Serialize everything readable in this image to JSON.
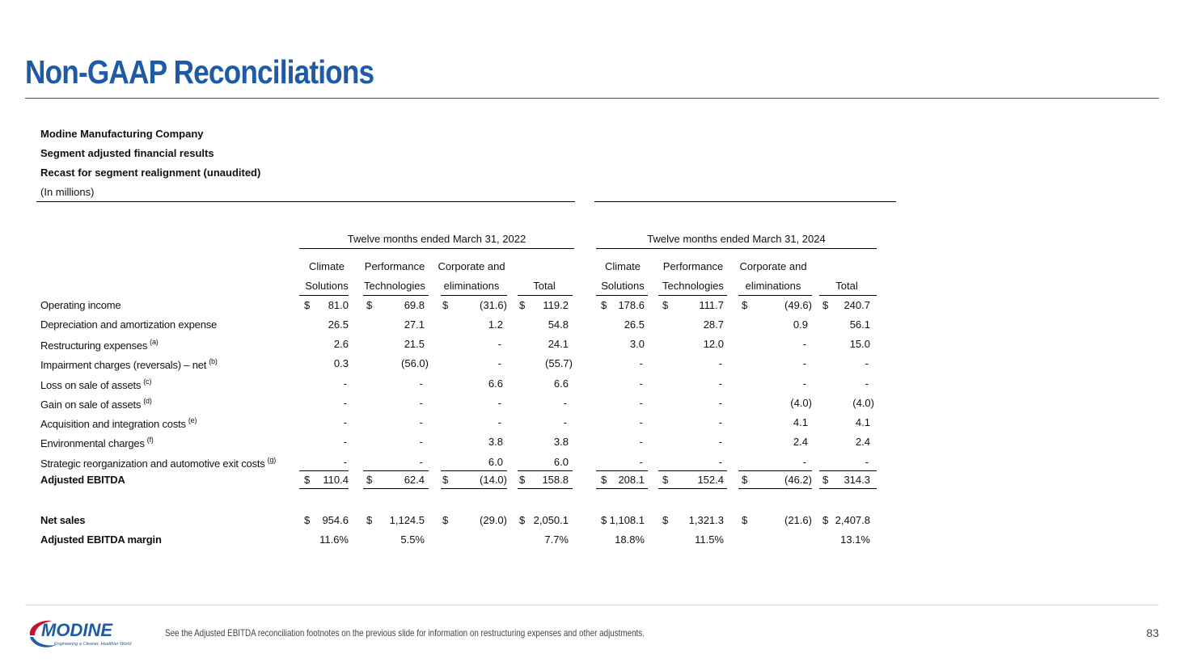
{
  "title": "Non-GAAP Reconciliations",
  "company": "Modine Manufacturing Company",
  "subtitle1": "Segment adjusted financial results",
  "subtitle2": "Recast for segment realignment (unaudited)",
  "units": "(In millions)",
  "periods": [
    "Twelve months ended March 31, 2022",
    "Twelve months ended March 31, 2024"
  ],
  "col_headers": [
    [
      "Climate",
      "Solutions"
    ],
    [
      "Performance",
      "Technologies"
    ],
    [
      "Corporate and",
      "eliminations"
    ],
    [
      "",
      "Total"
    ],
    [
      "Climate",
      "Solutions"
    ],
    [
      "Performance",
      "Technologies"
    ],
    [
      "Corporate and",
      "eliminations"
    ],
    [
      "",
      "Total"
    ]
  ],
  "rows": [
    {
      "label": "Operating income",
      "sup": "",
      "bold": false,
      "dollar": true,
      "values": [
        "81.0",
        "69.8",
        "(31.6)",
        "119.2",
        "178.6",
        "111.7",
        "(49.6)",
        "240.7"
      ]
    },
    {
      "label": "Depreciation and amortization expense",
      "sup": "",
      "bold": false,
      "dollar": false,
      "values": [
        "26.5",
        "27.1",
        "1.2",
        "54.8",
        "26.5",
        "28.7",
        "0.9",
        "56.1"
      ]
    },
    {
      "label": "Restructuring expenses",
      "sup": "(a)",
      "bold": false,
      "dollar": false,
      "values": [
        "2.6",
        "21.5",
        "-",
        "24.1",
        "3.0",
        "12.0",
        "-",
        "15.0"
      ]
    },
    {
      "label": "Impairment charges (reversals) – net",
      "sup": "(b)",
      "bold": false,
      "dollar": false,
      "values": [
        "0.3",
        "(56.0)",
        "-",
        "(55.7)",
        "-",
        "-",
        "-",
        "-"
      ]
    },
    {
      "label": "Loss on sale of assets",
      "sup": "(c)",
      "bold": false,
      "dollar": false,
      "values": [
        "-",
        "-",
        "6.6",
        "6.6",
        "-",
        "-",
        "-",
        "-"
      ]
    },
    {
      "label": "Gain on sale of assets",
      "sup": "(d)",
      "bold": false,
      "dollar": false,
      "values": [
        "-",
        "-",
        "-",
        "-",
        "-",
        "-",
        "(4.0)",
        "(4.0)"
      ]
    },
    {
      "label": "Acquisition and integration costs",
      "sup": "(e)",
      "bold": false,
      "dollar": false,
      "values": [
        "-",
        "-",
        "-",
        "-",
        "-",
        "-",
        "4.1",
        "4.1"
      ]
    },
    {
      "label": "Environmental charges",
      "sup": "(f)",
      "bold": false,
      "dollar": false,
      "values": [
        "-",
        "-",
        "3.8",
        "3.8",
        "-",
        "-",
        "2.4",
        "2.4"
      ]
    },
    {
      "label": "Strategic reorganization and automotive exit costs",
      "sup": "(g)",
      "bold": false,
      "dollar": false,
      "values": [
        "-",
        "-",
        "6.0",
        "6.0",
        "-",
        "-",
        "-",
        "-"
      ]
    },
    {
      "label": "Adjusted EBITDA",
      "sup": "",
      "bold": true,
      "dollar": true,
      "values": [
        "110.4",
        "62.4",
        "(14.0)",
        "158.8",
        "208.1",
        "152.4",
        "(46.2)",
        "314.3"
      ]
    },
    {
      "label": "Net sales",
      "sup": "",
      "bold": true,
      "dollar": true,
      "values": [
        "954.6",
        "1,124.5",
        "(29.0)",
        "2,050.1",
        "1,108.1",
        "1,321.3",
        "(21.6)",
        "2,407.8"
      ]
    },
    {
      "label": "Adjusted EBITDA margin",
      "sup": "",
      "bold": true,
      "dollar": false,
      "values": [
        "11.6%",
        "5.5%",
        "",
        "7.7%",
        "18.8%",
        "11.5%",
        "",
        "13.1%"
      ]
    }
  ],
  "dollar_sign": "$",
  "footnote": "See the Adjusted EBITDA reconciliation footnotes on the previous slide for information on restructuring expenses and other adjustments.",
  "page_number": "83",
  "logo": {
    "name": "MODINE",
    "tagline": "Engineering a Cleaner, Healthier World"
  },
  "colors": {
    "title": "#1f5aa6",
    "accent": "#c8102e"
  }
}
